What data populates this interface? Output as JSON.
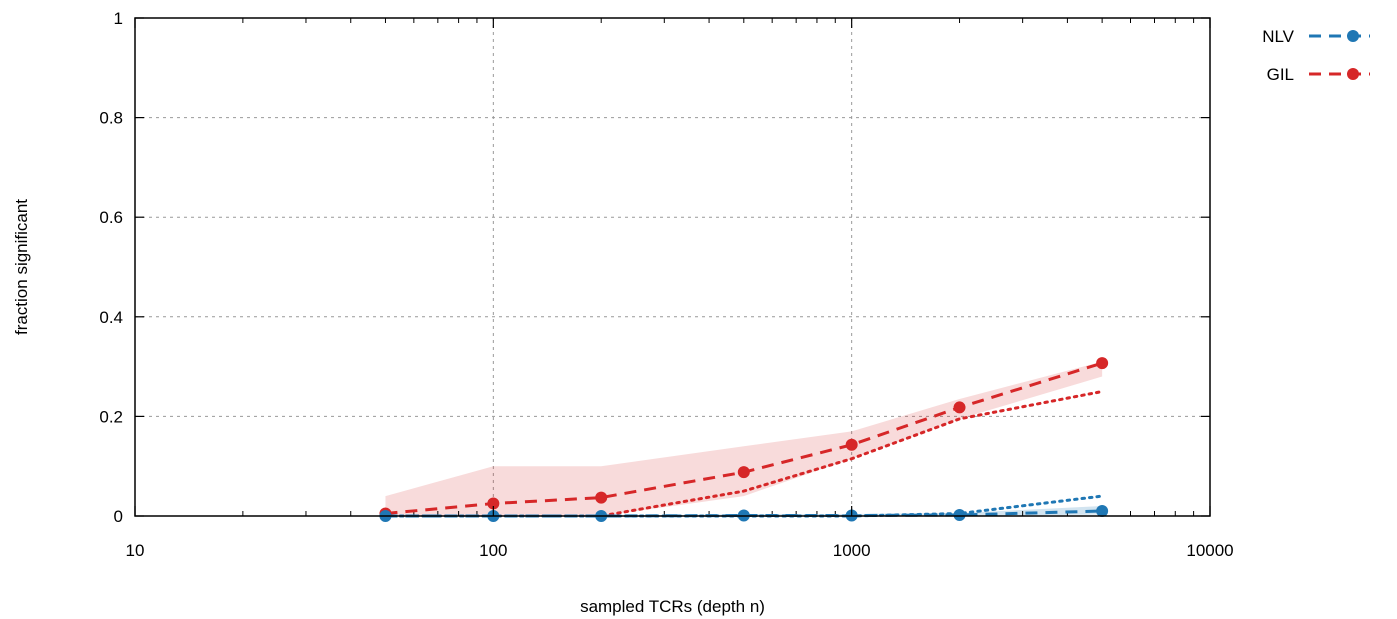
{
  "chart_data": {
    "type": "line",
    "xlabel": "sampled TCRs (depth n)",
    "ylabel": "fraction significant",
    "xscale": "log",
    "xlim": [
      10,
      10000
    ],
    "ylim": [
      0,
      1
    ],
    "xticks": [
      {
        "value": 10,
        "label": "10"
      },
      {
        "value": 100,
        "label": "100"
      },
      {
        "value": 1000,
        "label": "1000"
      },
      {
        "value": 10000,
        "label": "10000"
      }
    ],
    "yticks": [
      {
        "value": 0,
        "label": "0"
      },
      {
        "value": 0.2,
        "label": "0.2"
      },
      {
        "value": 0.4,
        "label": "0.4"
      },
      {
        "value": 0.6,
        "label": "0.6"
      },
      {
        "value": 0.8,
        "label": "0.8"
      },
      {
        "value": 1,
        "label": "1"
      }
    ],
    "grid": true,
    "legend_position": "top-right, outside plot",
    "series": [
      {
        "name": "NLV",
        "color": "#1f77b4",
        "x": [
          50,
          100,
          200,
          500,
          1000,
          2000,
          5000
        ],
        "values": [
          0.0,
          0.0,
          0.0,
          0.001,
          0.001,
          0.002,
          0.01
        ],
        "band_low": [
          0.0,
          0.0,
          0.0,
          0.0,
          0.0,
          0.0,
          0.003
        ],
        "band_high": [
          0.0,
          0.0,
          0.0,
          0.004,
          0.004,
          0.006,
          0.02
        ],
        "dotted": [
          0.0,
          0.0,
          0.0,
          0.0,
          0.0,
          0.005,
          0.04
        ]
      },
      {
        "name": "GIL",
        "color": "#d62728",
        "x": [
          50,
          100,
          200,
          500,
          1000,
          2000,
          5000
        ],
        "values": [
          0.005,
          0.025,
          0.037,
          0.088,
          0.143,
          0.218,
          0.307
        ],
        "band_low": [
          0.0,
          0.0,
          0.0,
          0.04,
          0.115,
          0.195,
          0.28
        ],
        "band_high": [
          0.04,
          0.1,
          0.1,
          0.14,
          0.17,
          0.235,
          0.31
        ],
        "dotted": [
          0.0,
          0.0,
          0.0,
          0.05,
          0.115,
          0.195,
          0.25
        ]
      }
    ]
  }
}
